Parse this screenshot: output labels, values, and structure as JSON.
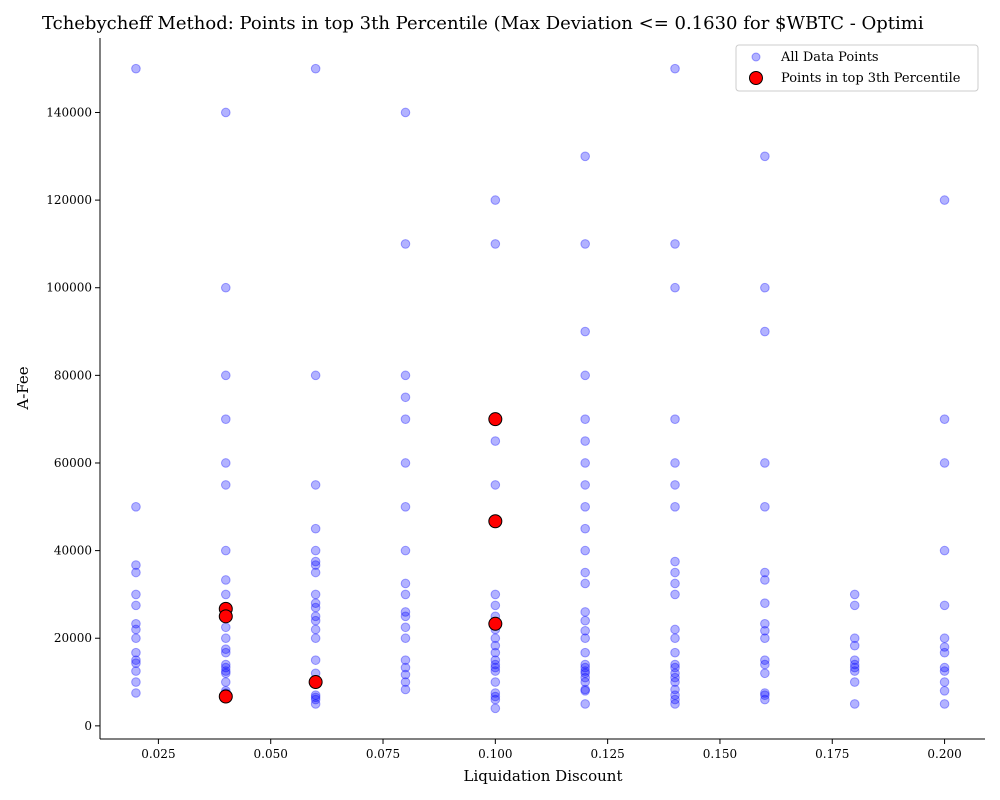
{
  "chart_data": {
    "type": "scatter",
    "title": "Tchebycheff Method: Points in top 3th Percentile (Max Deviation <= 0.1630 for $WBTC - Optimi",
    "xlabel": "Liquidation Discount",
    "ylabel": "A-Fee",
    "xlim": [
      0.012,
      0.209
    ],
    "ylim": [
      -3000,
      157000
    ],
    "x_ticks": [
      "0.025",
      "0.050",
      "0.075",
      "0.100",
      "0.125",
      "0.150",
      "0.175",
      "0.200"
    ],
    "y_ticks": [
      "0",
      "20000",
      "40000",
      "60000",
      "80000",
      "100000",
      "120000",
      "140000"
    ],
    "grid": false,
    "legend_position": "top-right",
    "colors": {
      "all_points": "#0000ff",
      "top_points_fill": "#ff0000",
      "top_points_edge": "#000000"
    },
    "series": [
      {
        "name": "All Data Points",
        "points": [
          [
            0.02,
            150000
          ],
          [
            0.02,
            50000
          ],
          [
            0.02,
            36700
          ],
          [
            0.02,
            35000
          ],
          [
            0.02,
            30000
          ],
          [
            0.02,
            27500
          ],
          [
            0.02,
            23300
          ],
          [
            0.02,
            22000
          ],
          [
            0.02,
            20000
          ],
          [
            0.02,
            16700
          ],
          [
            0.02,
            15000
          ],
          [
            0.02,
            14300
          ],
          [
            0.02,
            12500
          ],
          [
            0.02,
            10000
          ],
          [
            0.02,
            7500
          ],
          [
            0.04,
            140000
          ],
          [
            0.04,
            100000
          ],
          [
            0.04,
            80000
          ],
          [
            0.04,
            70000
          ],
          [
            0.04,
            60000
          ],
          [
            0.04,
            55000
          ],
          [
            0.04,
            40000
          ],
          [
            0.04,
            33300
          ],
          [
            0.04,
            30000
          ],
          [
            0.04,
            25000
          ],
          [
            0.04,
            22500
          ],
          [
            0.04,
            20000
          ],
          [
            0.04,
            17500
          ],
          [
            0.04,
            16700
          ],
          [
            0.04,
            14000
          ],
          [
            0.04,
            13300
          ],
          [
            0.04,
            12500
          ],
          [
            0.04,
            12000
          ],
          [
            0.04,
            10000
          ],
          [
            0.04,
            8000
          ],
          [
            0.04,
            7500
          ],
          [
            0.06,
            150000
          ],
          [
            0.06,
            80000
          ],
          [
            0.06,
            55000
          ],
          [
            0.06,
            45000
          ],
          [
            0.06,
            40000
          ],
          [
            0.06,
            37500
          ],
          [
            0.06,
            36700
          ],
          [
            0.06,
            35000
          ],
          [
            0.06,
            30000
          ],
          [
            0.06,
            28000
          ],
          [
            0.06,
            27000
          ],
          [
            0.06,
            25000
          ],
          [
            0.06,
            24000
          ],
          [
            0.06,
            22000
          ],
          [
            0.06,
            20000
          ],
          [
            0.06,
            15000
          ],
          [
            0.06,
            12000
          ],
          [
            0.06,
            10000
          ],
          [
            0.06,
            7000
          ],
          [
            0.06,
            6500
          ],
          [
            0.06,
            6000
          ],
          [
            0.06,
            5000
          ],
          [
            0.08,
            140000
          ],
          [
            0.08,
            110000
          ],
          [
            0.08,
            80000
          ],
          [
            0.08,
            75000
          ],
          [
            0.08,
            70000
          ],
          [
            0.08,
            60000
          ],
          [
            0.08,
            50000
          ],
          [
            0.08,
            40000
          ],
          [
            0.08,
            32500
          ],
          [
            0.08,
            30000
          ],
          [
            0.08,
            26000
          ],
          [
            0.08,
            25000
          ],
          [
            0.08,
            22500
          ],
          [
            0.08,
            20000
          ],
          [
            0.08,
            15000
          ],
          [
            0.08,
            13300
          ],
          [
            0.08,
            11700
          ],
          [
            0.08,
            10000
          ],
          [
            0.08,
            8300
          ],
          [
            0.1,
            120000
          ],
          [
            0.1,
            110000
          ],
          [
            0.1,
            70000
          ],
          [
            0.1,
            65000
          ],
          [
            0.1,
            55000
          ],
          [
            0.1,
            46700
          ],
          [
            0.1,
            30000
          ],
          [
            0.1,
            27500
          ],
          [
            0.1,
            25000
          ],
          [
            0.1,
            23300
          ],
          [
            0.1,
            22000
          ],
          [
            0.1,
            20000
          ],
          [
            0.1,
            18300
          ],
          [
            0.1,
            16700
          ],
          [
            0.1,
            15000
          ],
          [
            0.1,
            14000
          ],
          [
            0.1,
            13300
          ],
          [
            0.1,
            12500
          ],
          [
            0.1,
            10000
          ],
          [
            0.1,
            7500
          ],
          [
            0.1,
            6700
          ],
          [
            0.1,
            6000
          ],
          [
            0.1,
            4000
          ],
          [
            0.12,
            130000
          ],
          [
            0.12,
            110000
          ],
          [
            0.12,
            90000
          ],
          [
            0.12,
            80000
          ],
          [
            0.12,
            70000
          ],
          [
            0.12,
            65000
          ],
          [
            0.12,
            60000
          ],
          [
            0.12,
            55000
          ],
          [
            0.12,
            50000
          ],
          [
            0.12,
            45000
          ],
          [
            0.12,
            40000
          ],
          [
            0.12,
            35000
          ],
          [
            0.12,
            32500
          ],
          [
            0.12,
            26000
          ],
          [
            0.12,
            24000
          ],
          [
            0.12,
            21700
          ],
          [
            0.12,
            20000
          ],
          [
            0.12,
            16700
          ],
          [
            0.12,
            14000
          ],
          [
            0.12,
            13300
          ],
          [
            0.12,
            12500
          ],
          [
            0.12,
            12000
          ],
          [
            0.12,
            11000
          ],
          [
            0.12,
            10000
          ],
          [
            0.12,
            8300
          ],
          [
            0.12,
            8000
          ],
          [
            0.12,
            5000
          ],
          [
            0.14,
            150000
          ],
          [
            0.14,
            110000
          ],
          [
            0.14,
            100000
          ],
          [
            0.14,
            70000
          ],
          [
            0.14,
            60000
          ],
          [
            0.14,
            55000
          ],
          [
            0.14,
            50000
          ],
          [
            0.14,
            37500
          ],
          [
            0.14,
            35000
          ],
          [
            0.14,
            32500
          ],
          [
            0.14,
            30000
          ],
          [
            0.14,
            22000
          ],
          [
            0.14,
            20000
          ],
          [
            0.14,
            16700
          ],
          [
            0.14,
            14000
          ],
          [
            0.14,
            13300
          ],
          [
            0.14,
            12000
          ],
          [
            0.14,
            11000
          ],
          [
            0.14,
            10000
          ],
          [
            0.14,
            8300
          ],
          [
            0.14,
            7000
          ],
          [
            0.14,
            6000
          ],
          [
            0.14,
            5000
          ],
          [
            0.16,
            130000
          ],
          [
            0.16,
            100000
          ],
          [
            0.16,
            90000
          ],
          [
            0.16,
            60000
          ],
          [
            0.16,
            50000
          ],
          [
            0.16,
            35000
          ],
          [
            0.16,
            33300
          ],
          [
            0.16,
            28000
          ],
          [
            0.16,
            23300
          ],
          [
            0.16,
            21700
          ],
          [
            0.16,
            20000
          ],
          [
            0.16,
            15000
          ],
          [
            0.16,
            14000
          ],
          [
            0.16,
            12000
          ],
          [
            0.16,
            7500
          ],
          [
            0.16,
            7000
          ],
          [
            0.16,
            6000
          ],
          [
            0.18,
            30000
          ],
          [
            0.18,
            27500
          ],
          [
            0.18,
            20000
          ],
          [
            0.18,
            18300
          ],
          [
            0.18,
            15000
          ],
          [
            0.18,
            14000
          ],
          [
            0.18,
            13300
          ],
          [
            0.18,
            12500
          ],
          [
            0.18,
            10000
          ],
          [
            0.18,
            5000
          ],
          [
            0.2,
            120000
          ],
          [
            0.2,
            70000
          ],
          [
            0.2,
            60000
          ],
          [
            0.2,
            40000
          ],
          [
            0.2,
            27500
          ],
          [
            0.2,
            20000
          ],
          [
            0.2,
            18000
          ],
          [
            0.2,
            16700
          ],
          [
            0.2,
            13300
          ],
          [
            0.2,
            12500
          ],
          [
            0.2,
            10000
          ],
          [
            0.2,
            8000
          ],
          [
            0.2,
            5000
          ]
        ]
      },
      {
        "name": "Points in top 3th Percentile",
        "points": [
          [
            0.04,
            26700
          ],
          [
            0.04,
            25000
          ],
          [
            0.04,
            6700
          ],
          [
            0.06,
            10000
          ],
          [
            0.1,
            70000
          ],
          [
            0.1,
            46700
          ],
          [
            0.1,
            23300
          ]
        ]
      }
    ]
  }
}
